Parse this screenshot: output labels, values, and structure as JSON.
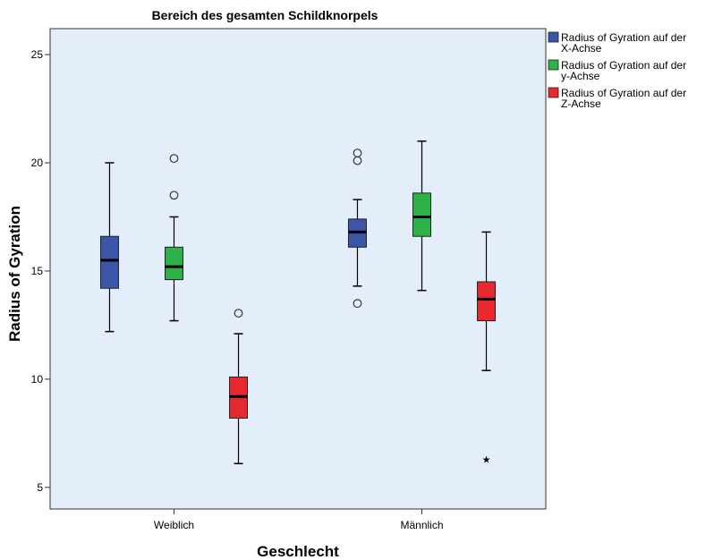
{
  "chart_data": {
    "type": "boxplot",
    "title": "Bereich des gesamten Schildknorpels",
    "xlabel": "Geschlecht",
    "ylabel": "Radius of Gyration",
    "ylim": [
      4,
      26.2
    ],
    "yticks": [
      5,
      10,
      15,
      20,
      25
    ],
    "categories": [
      "Weiblich",
      "Männlich"
    ],
    "grid": false,
    "legend_position": "right",
    "series": [
      {
        "name": "Radius of Gyration auf der X-Achse",
        "legend_lines": [
          "Radius of Gyration auf der",
          "X-Achse"
        ],
        "color": "#3c55a8",
        "boxes": [
          {
            "category": "Weiblich",
            "whisker_low": 12.2,
            "q1": 14.2,
            "median": 15.5,
            "q3": 16.6,
            "whisker_high": 20.0,
            "outliers": [],
            "extremes": []
          },
          {
            "category": "Männlich",
            "whisker_low": 14.3,
            "q1": 16.1,
            "median": 16.8,
            "q3": 17.4,
            "whisker_high": 18.3,
            "outliers": [
              20.45,
              20.1,
              13.5
            ],
            "extremes": []
          }
        ]
      },
      {
        "name": "Radius of Gyration auf der y-Achse",
        "legend_lines": [
          "Radius of Gyration auf der",
          "y-Achse"
        ],
        "color": "#2fb14a",
        "boxes": [
          {
            "category": "Weiblich",
            "whisker_low": 12.7,
            "q1": 14.6,
            "median": 15.2,
            "q3": 16.1,
            "whisker_high": 17.5,
            "outliers": [
              20.2,
              18.5
            ],
            "extremes": []
          },
          {
            "category": "Männlich",
            "whisker_low": 14.1,
            "q1": 16.6,
            "median": 17.5,
            "q3": 18.6,
            "whisker_high": 21.0,
            "outliers": [],
            "extremes": []
          }
        ]
      },
      {
        "name": "Radius of Gyration auf der Z-Achse",
        "legend_lines": [
          "Radius of Gyration auf der",
          "Z-Achse"
        ],
        "color": "#e8282f",
        "boxes": [
          {
            "category": "Weiblich",
            "whisker_low": 6.1,
            "q1": 8.2,
            "median": 9.2,
            "q3": 10.1,
            "whisker_high": 12.1,
            "outliers": [
              13.05
            ],
            "extremes": []
          },
          {
            "category": "Männlich",
            "whisker_low": 10.4,
            "q1": 12.7,
            "median": 13.7,
            "q3": 14.5,
            "whisker_high": 16.8,
            "outliers": [],
            "extremes": [
              6.3
            ]
          }
        ]
      }
    ]
  }
}
